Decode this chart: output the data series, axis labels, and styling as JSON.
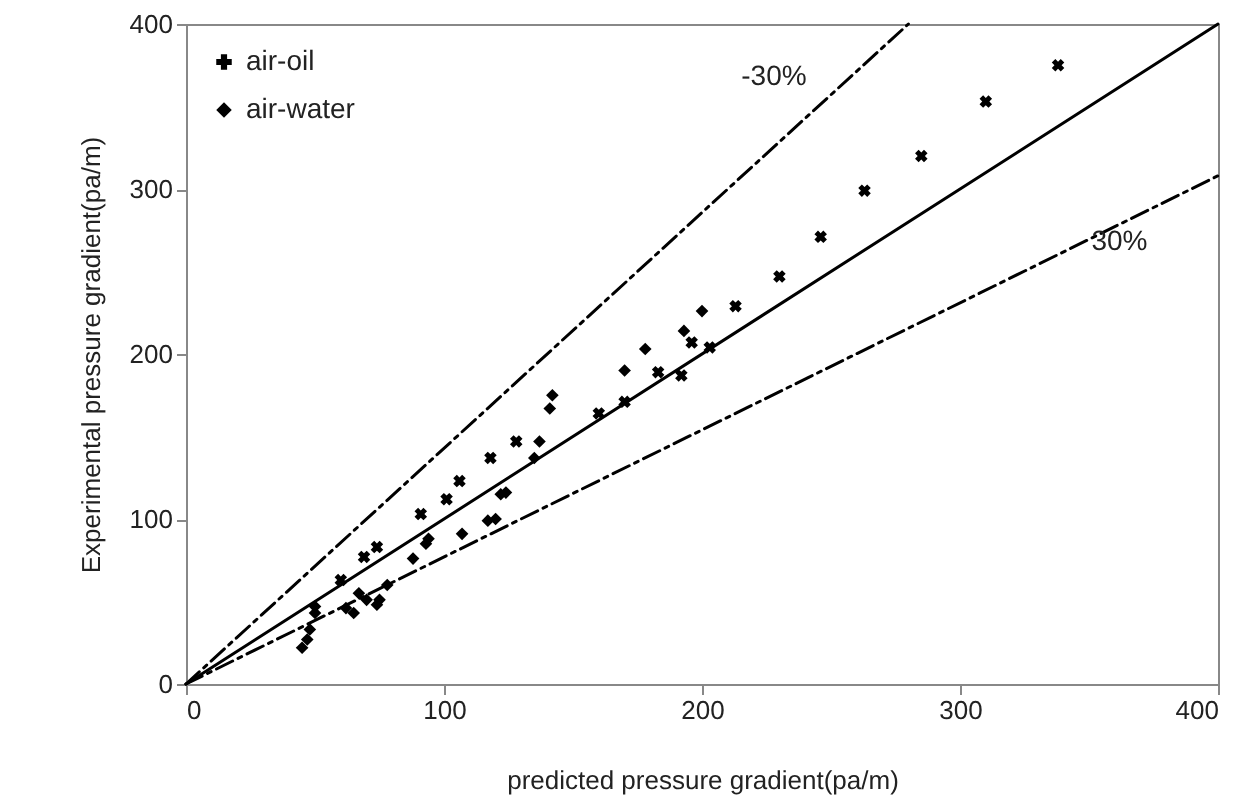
{
  "chart_data": {
    "type": "scatter",
    "xlabel": "predicted pressure gradient(pa/m)",
    "ylabel": "Experimental pressure gradient(pa/m)",
    "xlim": [
      0,
      400
    ],
    "xticks": [
      0,
      100,
      200,
      300,
      400
    ],
    "ylim": [
      0,
      400
    ],
    "yticks": [
      0,
      100,
      200,
      300,
      400
    ],
    "grid": false,
    "legend": "top left",
    "series": [
      {
        "name": "air-oil",
        "type": "scatter",
        "marker": "cross",
        "color": "#000000",
        "x": [
          60,
          69,
          74,
          91,
          101,
          106,
          118,
          128,
          160,
          170,
          183,
          192,
          196,
          203,
          213,
          230,
          246,
          263,
          285,
          310,
          338
        ],
        "values": [
          63,
          77,
          83,
          103,
          112,
          123,
          137,
          147,
          164,
          171,
          189,
          187,
          207,
          204,
          229,
          247,
          271,
          299,
          320,
          353,
          375
        ]
      },
      {
        "name": "air-water",
        "type": "scatter",
        "marker": "diamond",
        "color": "#000000",
        "x": [
          45,
          47,
          48,
          50,
          50,
          62,
          65,
          67,
          70,
          74,
          75,
          78,
          88,
          93,
          94,
          107,
          117,
          120,
          122,
          124,
          135,
          137,
          141,
          142,
          170,
          178,
          193,
          200
        ],
        "values": [
          22,
          27,
          33,
          43,
          47,
          46,
          43,
          55,
          51,
          48,
          51,
          60,
          76,
          85,
          88,
          91,
          99,
          100,
          115,
          116,
          137,
          147,
          167,
          175,
          190,
          203,
          214,
          226
        ]
      },
      {
        "name": "-30%",
        "type": "line",
        "marker": "none",
        "line_style": "dashed",
        "color": "#000000",
        "x": [
          0,
          280
        ],
        "values": [
          0,
          400
        ]
      },
      {
        "type": "line",
        "marker": "none",
        "line_style": "solid",
        "color": "#000000",
        "x": [
          0,
          400
        ],
        "values": [
          0,
          400
        ]
      },
      {
        "name": "30%",
        "type": "line",
        "marker": "none",
        "line_style": "dashed",
        "color": "#000000",
        "x": [
          0,
          400
        ],
        "values": [
          0,
          308
        ]
      }
    ]
  }
}
